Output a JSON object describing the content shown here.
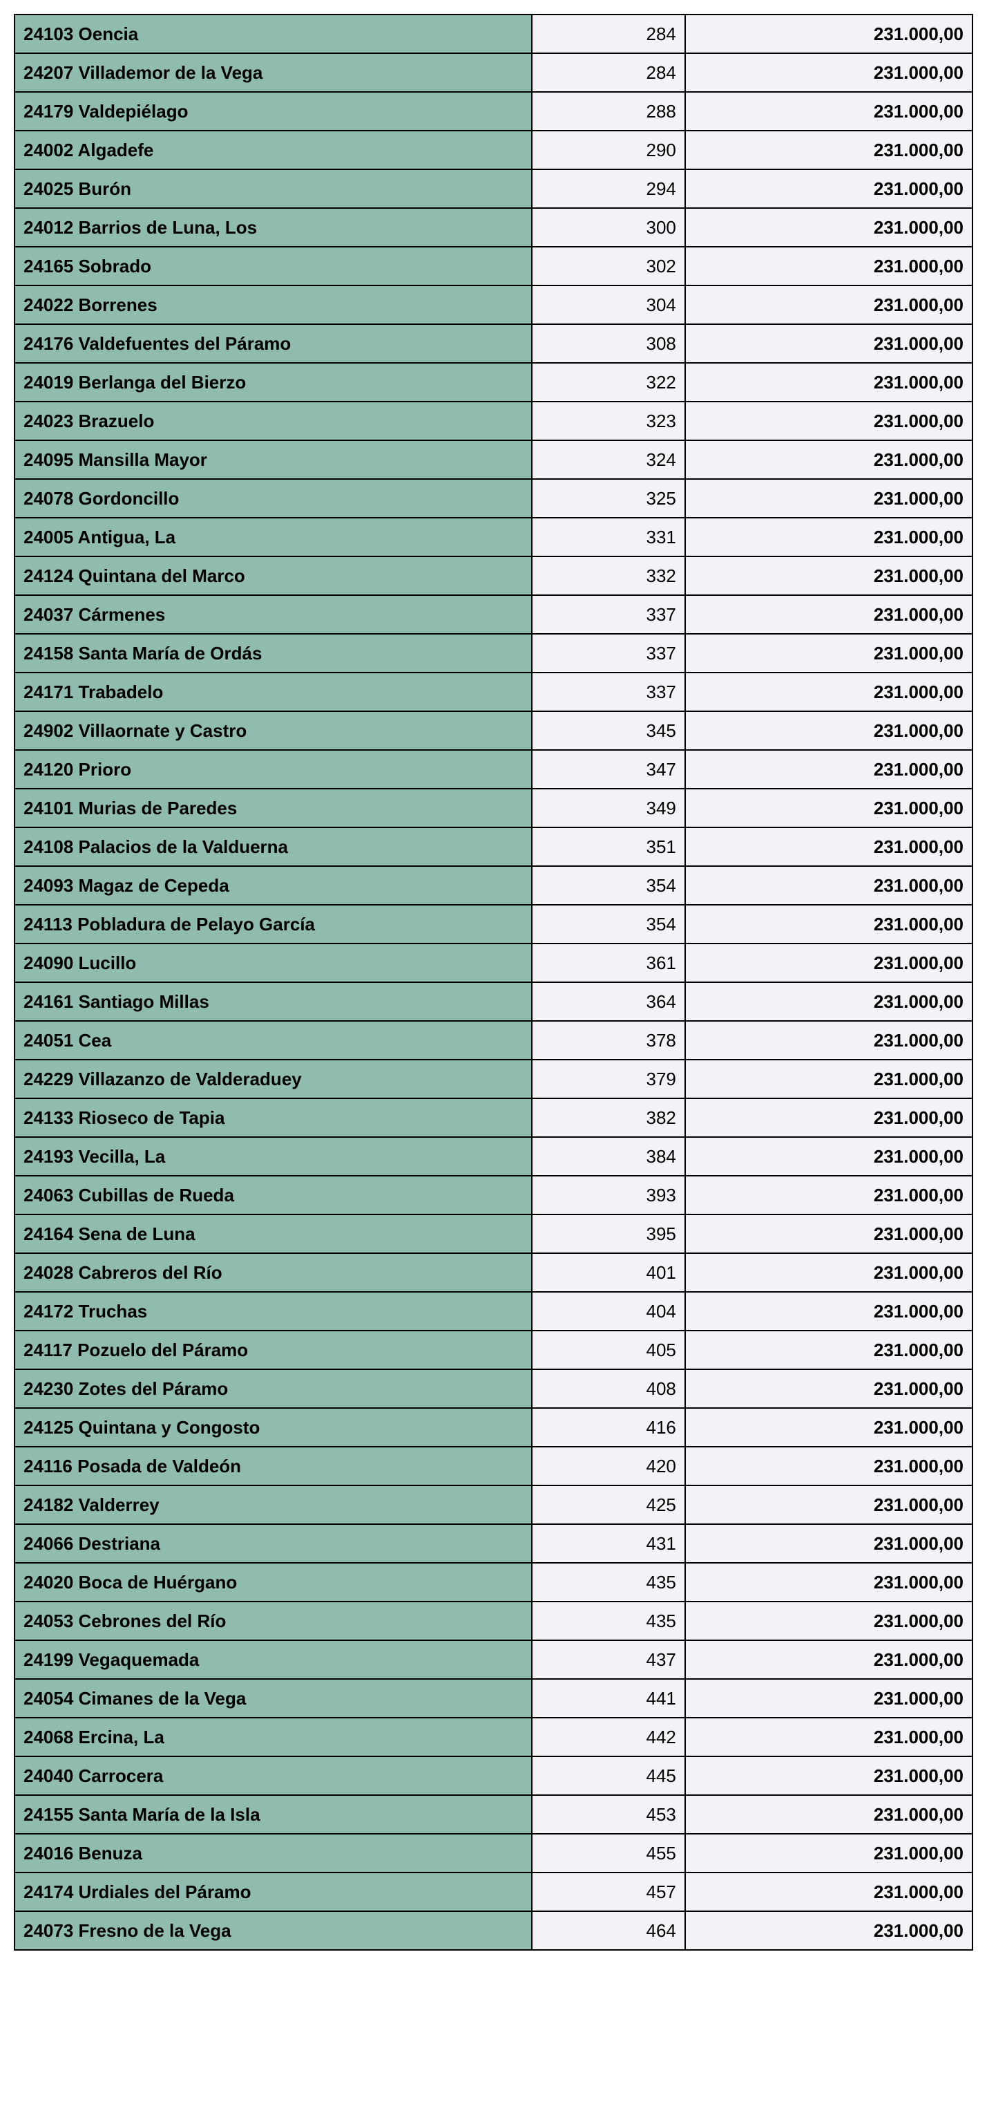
{
  "table": {
    "columns": [
      {
        "key": "name",
        "class": "col-name",
        "align": "left"
      },
      {
        "key": "num",
        "class": "col-num",
        "align": "right"
      },
      {
        "key": "amount",
        "class": "col-amount",
        "align": "right"
      }
    ],
    "colors": {
      "name_bg": "#8fbcaf",
      "data_bg": "#f3f3f7",
      "border": "#000000",
      "text": "#000000"
    },
    "font": {
      "family": "Arial",
      "size_pt": 20,
      "name_weight": "bold",
      "num_weight": "normal",
      "amount_weight": "bold"
    },
    "column_widths_pct": [
      54,
      16,
      30
    ],
    "rows": [
      {
        "name": "24103 Oencia",
        "num": "284",
        "amount": "231.000,00"
      },
      {
        "name": "24207 Villademor de la Vega",
        "num": "284",
        "amount": "231.000,00"
      },
      {
        "name": "24179 Valdepiélago",
        "num": "288",
        "amount": "231.000,00"
      },
      {
        "name": "24002 Algadefe",
        "num": "290",
        "amount": "231.000,00"
      },
      {
        "name": "24025 Burón",
        "num": "294",
        "amount": "231.000,00"
      },
      {
        "name": "24012 Barrios de Luna, Los",
        "num": "300",
        "amount": "231.000,00"
      },
      {
        "name": "24165 Sobrado",
        "num": "302",
        "amount": "231.000,00"
      },
      {
        "name": "24022 Borrenes",
        "num": "304",
        "amount": "231.000,00"
      },
      {
        "name": "24176 Valdefuentes del Páramo",
        "num": "308",
        "amount": "231.000,00"
      },
      {
        "name": "24019 Berlanga del Bierzo",
        "num": "322",
        "amount": "231.000,00"
      },
      {
        "name": "24023 Brazuelo",
        "num": "323",
        "amount": "231.000,00"
      },
      {
        "name": "24095 Mansilla Mayor",
        "num": "324",
        "amount": "231.000,00"
      },
      {
        "name": "24078 Gordoncillo",
        "num": "325",
        "amount": "231.000,00"
      },
      {
        "name": "24005 Antigua, La",
        "num": "331",
        "amount": "231.000,00"
      },
      {
        "name": "24124 Quintana del Marco",
        "num": "332",
        "amount": "231.000,00"
      },
      {
        "name": "24037 Cármenes",
        "num": "337",
        "amount": "231.000,00"
      },
      {
        "name": "24158 Santa María de Ordás",
        "num": "337",
        "amount": "231.000,00"
      },
      {
        "name": "24171 Trabadelo",
        "num": "337",
        "amount": "231.000,00"
      },
      {
        "name": "24902 Villaornate y Castro",
        "num": "345",
        "amount": "231.000,00"
      },
      {
        "name": "24120 Prioro",
        "num": "347",
        "amount": "231.000,00"
      },
      {
        "name": "24101 Murias de Paredes",
        "num": "349",
        "amount": "231.000,00"
      },
      {
        "name": "24108 Palacios de la Valduerna",
        "num": "351",
        "amount": "231.000,00"
      },
      {
        "name": "24093 Magaz de Cepeda",
        "num": "354",
        "amount": "231.000,00"
      },
      {
        "name": "24113 Pobladura de Pelayo García",
        "num": "354",
        "amount": "231.000,00"
      },
      {
        "name": "24090 Lucillo",
        "num": "361",
        "amount": "231.000,00"
      },
      {
        "name": "24161 Santiago Millas",
        "num": "364",
        "amount": "231.000,00"
      },
      {
        "name": "24051 Cea",
        "num": "378",
        "amount": "231.000,00"
      },
      {
        "name": "24229 Villazanzo de Valderaduey",
        "num": "379",
        "amount": "231.000,00"
      },
      {
        "name": "24133 Rioseco de Tapia",
        "num": "382",
        "amount": "231.000,00"
      },
      {
        "name": "24193 Vecilla, La",
        "num": "384",
        "amount": "231.000,00"
      },
      {
        "name": "24063 Cubillas de Rueda",
        "num": "393",
        "amount": "231.000,00"
      },
      {
        "name": "24164 Sena de Luna",
        "num": "395",
        "amount": "231.000,00"
      },
      {
        "name": "24028 Cabreros del Río",
        "num": "401",
        "amount": "231.000,00"
      },
      {
        "name": "24172 Truchas",
        "num": "404",
        "amount": "231.000,00"
      },
      {
        "name": "24117 Pozuelo del Páramo",
        "num": "405",
        "amount": "231.000,00"
      },
      {
        "name": "24230 Zotes del Páramo",
        "num": "408",
        "amount": "231.000,00"
      },
      {
        "name": "24125 Quintana y Congosto",
        "num": "416",
        "amount": "231.000,00"
      },
      {
        "name": "24116 Posada de Valdeón",
        "num": "420",
        "amount": "231.000,00"
      },
      {
        "name": "24182 Valderrey",
        "num": "425",
        "amount": "231.000,00"
      },
      {
        "name": "24066 Destriana",
        "num": "431",
        "amount": "231.000,00"
      },
      {
        "name": "24020 Boca de Huérgano",
        "num": "435",
        "amount": "231.000,00"
      },
      {
        "name": "24053 Cebrones del Río",
        "num": "435",
        "amount": "231.000,00"
      },
      {
        "name": "24199 Vegaquemada",
        "num": "437",
        "amount": "231.000,00"
      },
      {
        "name": "24054 Cimanes de la Vega",
        "num": "441",
        "amount": "231.000,00"
      },
      {
        "name": "24068 Ercina, La",
        "num": "442",
        "amount": "231.000,00"
      },
      {
        "name": "24040 Carrocera",
        "num": "445",
        "amount": "231.000,00"
      },
      {
        "name": "24155 Santa María de la Isla",
        "num": "453",
        "amount": "231.000,00"
      },
      {
        "name": "24016 Benuza",
        "num": "455",
        "amount": "231.000,00"
      },
      {
        "name": "24174 Urdiales del Páramo",
        "num": "457",
        "amount": "231.000,00"
      },
      {
        "name": "24073 Fresno de la Vega",
        "num": "464",
        "amount": "231.000,00"
      }
    ]
  }
}
